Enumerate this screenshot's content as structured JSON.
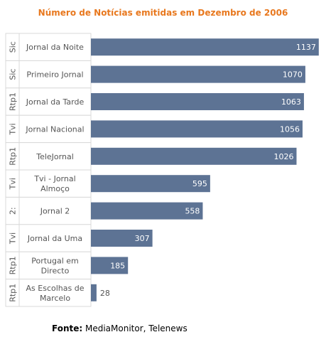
{
  "chart_data": {
    "type": "bar",
    "orientation": "horizontal",
    "title": "Número de Notícias emitidas em Dezembro de 2006",
    "xlim": [
      0,
      1150
    ],
    "grid": false,
    "bar_color": "#5d7394",
    "categories": [
      {
        "group": "Sic",
        "label": [
          "Jornal da Noite"
        ]
      },
      {
        "group": "Sic",
        "label": [
          "Primeiro Jornal"
        ]
      },
      {
        "group": "Rtp1",
        "label": [
          "Jornal da Tarde"
        ]
      },
      {
        "group": "Tvi",
        "label": [
          "Jornal Nacional"
        ]
      },
      {
        "group": "Rtp1",
        "label": [
          "TeleJornal"
        ]
      },
      {
        "group": "Tvi",
        "label": [
          "Tvi - Jornal",
          "Almoço"
        ]
      },
      {
        "group": "2:",
        "label": [
          "Jornal 2"
        ]
      },
      {
        "group": "Tvi",
        "label": [
          "Jornal da Uma"
        ]
      },
      {
        "group": "Rtp1",
        "label": [
          "Portugal em",
          "Directo"
        ]
      },
      {
        "group": "Rtp1",
        "label": [
          "As Escolhas de",
          "Marcelo"
        ]
      }
    ],
    "values": [
      1137,
      1070,
      1063,
      1056,
      1026,
      595,
      558,
      307,
      185,
      28
    ]
  },
  "source": {
    "label": "Fonte:",
    "text": " MediaMonitor, Telenews"
  }
}
